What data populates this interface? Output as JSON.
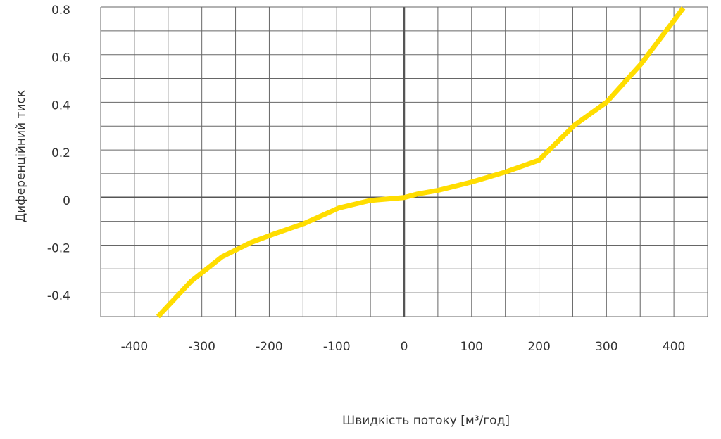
{
  "chart_data": {
    "type": "line",
    "x_label": "Швидкість потоку [м³/год]",
    "y_label": "Диференційний тиск",
    "x": [
      -365,
      -316,
      -270,
      -228,
      -190,
      -149,
      -97,
      -50,
      0,
      20,
      50,
      100,
      150,
      200,
      221,
      253,
      300,
      351,
      414
    ],
    "series": [
      {
        "name": "Диференційний тиск",
        "color": "#ffdd00",
        "values": [
          -0.5,
          -0.352,
          -0.249,
          -0.19,
          -0.15,
          -0.11,
          -0.044,
          -0.012,
          0,
          0.015,
          0.03,
          0.065,
          0.107,
          0.157,
          0.216,
          0.305,
          0.4,
          0.56,
          0.796
        ]
      }
    ],
    "xlim": [
      -450,
      450
    ],
    "xticks": [
      -400,
      -300,
      -200,
      -100,
      0,
      100,
      200,
      300,
      400
    ],
    "ylim": [
      -0.5,
      0.8
    ],
    "yticks": [
      -0.4,
      -0.2,
      0,
      0.2,
      0.4,
      0.6,
      0.8
    ],
    "grid": true
  }
}
